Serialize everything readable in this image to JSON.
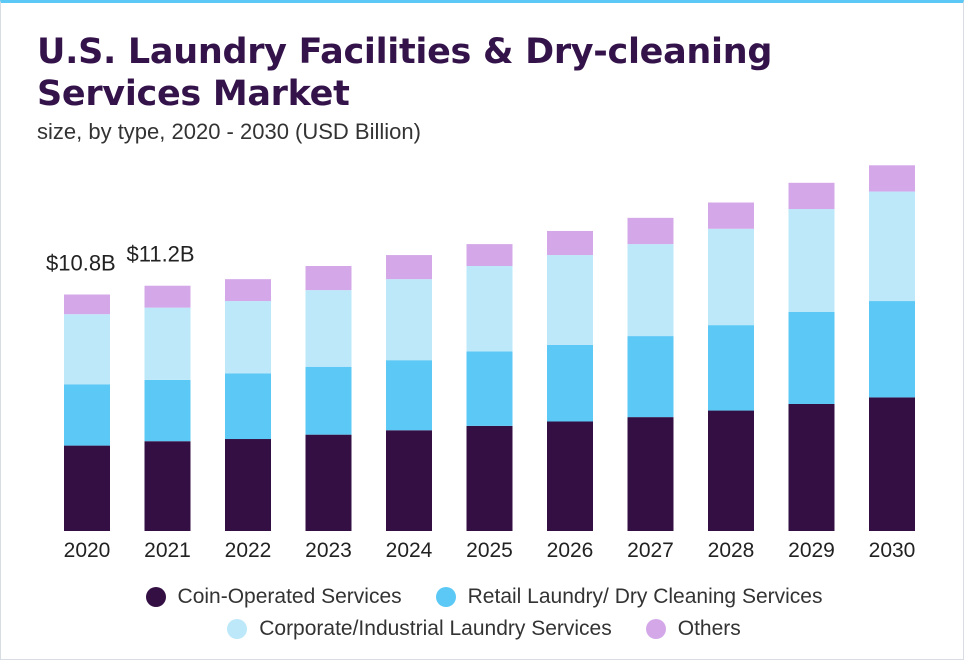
{
  "header": {
    "title_line1": "U.S. Laundry Facilities & Dry-cleaning",
    "title_line2": "Services Market",
    "subtitle": "size, by type, 2020 - 2030 (USD Billion)"
  },
  "chart_data": {
    "type": "bar",
    "stacked": true,
    "title": "U.S. Laundry Facilities & Dry-cleaning Services Market",
    "subtitle": "size, by type, 2020 - 2030 (USD Billion)",
    "categories": [
      "2020",
      "2021",
      "2022",
      "2023",
      "2024",
      "2025",
      "2026",
      "2027",
      "2028",
      "2029",
      "2030"
    ],
    "series": [
      {
        "name": "Coin-Operated Services",
        "color": "#340f43",
        "values": [
          3.9,
          4.1,
          4.2,
          4.4,
          4.6,
          4.8,
          5.0,
          5.2,
          5.5,
          5.8,
          6.1
        ]
      },
      {
        "name": "Retail Laundry/ Dry Cleaning Services",
        "color": "#5bc8f5",
        "values": [
          2.8,
          2.8,
          3.0,
          3.1,
          3.2,
          3.4,
          3.5,
          3.7,
          3.9,
          4.2,
          4.4
        ]
      },
      {
        "name": "Corporate/Industrial Laundry Services",
        "color": "#bde8fa",
        "values": [
          3.2,
          3.3,
          3.3,
          3.5,
          3.7,
          3.9,
          4.1,
          4.2,
          4.4,
          4.7,
          5.0
        ]
      },
      {
        "name": "Others",
        "color": "#d4a8e8",
        "values": [
          0.9,
          1.0,
          1.0,
          1.1,
          1.1,
          1.0,
          1.1,
          1.2,
          1.2,
          1.2,
          1.2
        ]
      }
    ],
    "annotations": [
      {
        "category": "2020",
        "text": "$10.8B"
      },
      {
        "category": "2021",
        "text": "$11.2B"
      }
    ],
    "ylim": [
      0,
      17
    ],
    "grid": false,
    "legend_position": "bottom"
  }
}
